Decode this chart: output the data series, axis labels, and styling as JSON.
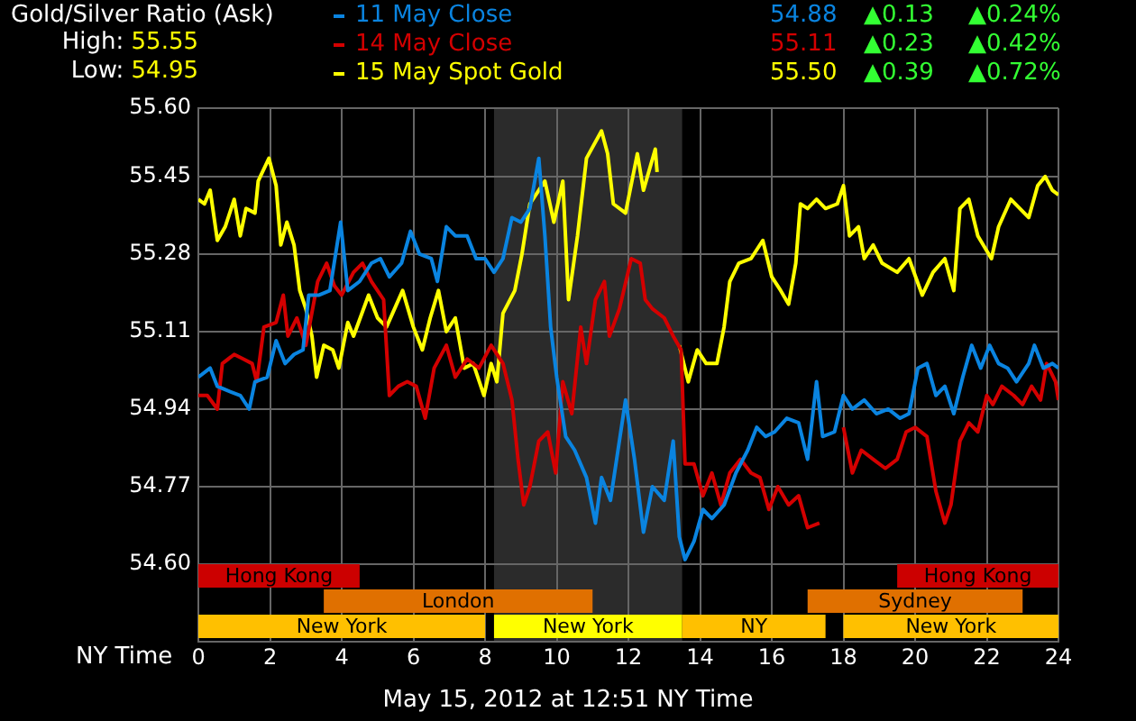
{
  "chart_data": {
    "type": "line",
    "title": "Gold/Silver Ratio (Ask)",
    "xlabel": "NY Time",
    "legend": "top",
    "grid": true,
    "xlim": [
      0,
      24
    ],
    "xticks": [
      0,
      2,
      4,
      6,
      8,
      10,
      12,
      14,
      16,
      18,
      20,
      22,
      24
    ],
    "ylim": [
      54.43,
      55.6
    ],
    "yticks": [
      {
        "value": 54.6,
        "label": "54.60"
      },
      54.77,
      54.94,
      55.11,
      55.28,
      55.45,
      {
        "value": 55.6,
        "label": "55.60"
      }
    ],
    "annotations": [
      "High: 55.55",
      "Low: 54.95",
      "54.88 ▲0.13 ▲0.24%",
      "55.11 ▲0.23 ▲0.42%",
      "55.50 ▲0.39 ▲0.72%",
      "May 15, 2012 at 12:51 NY Time"
    ],
    "bands": [
      {
        "axis": "x",
        "from": 8.25,
        "to": 13.5,
        "color": "#2b2b2b"
      },
      {
        "axis": "x",
        "from": 0,
        "to": 8,
        "label": "New York",
        "color": "#ffc000"
      },
      {
        "axis": "x",
        "from": 8.25,
        "to": 13.5,
        "label": "New York",
        "color": "#ffff00"
      },
      {
        "axis": "x",
        "from": 13.5,
        "to": 17.5,
        "label": "NY",
        "color": "#ffc000"
      },
      {
        "axis": "x",
        "from": 18,
        "to": 24,
        "label": "New York",
        "color": "#ffc000"
      },
      {
        "axis": "x",
        "from": 3.5,
        "to": 11,
        "label": "London",
        "color": "#e07000"
      },
      {
        "axis": "x",
        "from": 17,
        "to": 23,
        "label": "Sydney",
        "color": "#e07000"
      },
      {
        "axis": "x",
        "from": 0,
        "to": 4.5,
        "label": "Hong Kong",
        "color": "#cc0000"
      },
      {
        "axis": "x",
        "from": 19.5,
        "to": 24,
        "label": "Hong Kong",
        "color": "#cc0000"
      }
    ],
    "series": [
      {
        "name": "11 May Close",
        "color": "#0a84e0",
        "x": [
          0,
          0.33,
          0.53,
          0.83,
          1.17,
          1.42,
          1.58,
          1.92,
          2.17,
          2.42,
          2.67,
          2.92,
          3.08,
          3.37,
          3.67,
          3.97,
          4.17,
          4.5,
          4.83,
          5.08,
          5.33,
          5.67,
          5.92,
          6.17,
          6.5,
          6.67,
          6.92,
          7.17,
          7.5,
          7.75,
          8,
          8.25,
          8.5,
          8.75,
          9,
          9.25,
          9.5,
          9.67,
          9.83,
          10,
          10.25,
          10.5,
          10.83,
          11.08,
          11.25,
          11.5,
          11.92,
          12.17,
          12.42,
          12.67,
          13,
          13.25,
          13.42,
          13.58,
          13.83,
          14.08,
          14.33,
          14.67,
          15,
          15.33,
          15.58,
          15.83,
          16.08,
          16.42,
          16.75,
          17,
          17.25,
          17.42,
          17.75,
          18,
          18.25,
          18.58,
          18.92,
          19.25,
          19.58,
          19.83,
          20.08,
          20.33,
          20.58,
          20.83,
          21.08,
          21.33,
          21.58,
          21.83,
          22.08,
          22.33,
          22.58,
          22.83,
          23.17,
          23.33,
          23.58,
          23.83,
          24
        ],
        "values": [
          55.01,
          55.03,
          54.99,
          54.98,
          54.97,
          54.94,
          55.0,
          55.01,
          55.09,
          55.04,
          55.06,
          55.07,
          55.19,
          55.19,
          55.2,
          55.35,
          55.2,
          55.22,
          55.26,
          55.27,
          55.23,
          55.26,
          55.33,
          55.28,
          55.27,
          55.22,
          55.34,
          55.32,
          55.32,
          55.27,
          55.27,
          55.24,
          55.27,
          55.36,
          55.35,
          55.38,
          55.49,
          55.32,
          55.12,
          55.01,
          54.88,
          54.85,
          54.79,
          54.69,
          54.79,
          54.74,
          54.96,
          54.83,
          54.67,
          54.77,
          54.74,
          54.87,
          54.66,
          54.61,
          54.65,
          54.72,
          54.7,
          54.73,
          54.8,
          54.85,
          54.9,
          54.88,
          54.89,
          54.92,
          54.91,
          54.83,
          55.0,
          54.88,
          54.89,
          54.97,
          54.94,
          54.96,
          54.93,
          54.94,
          54.92,
          54.93,
          55.03,
          55.04,
          54.97,
          54.99,
          54.93,
          55.01,
          55.08,
          55.03,
          55.08,
          55.04,
          55.03,
          55.0,
          55.04,
          55.08,
          55.03,
          55.04,
          55.03
        ]
      },
      {
        "name": "14 May Close",
        "color": "#d40000",
        "x": [
          0,
          0.25,
          0.53,
          0.67,
          1,
          1.25,
          1.5,
          1.63,
          1.83,
          2.17,
          2.37,
          2.5,
          2.75,
          3,
          3.33,
          3.58,
          3.8,
          4,
          4.33,
          4.58,
          4.83,
          5.17,
          5.33,
          5.58,
          5.83,
          6.08,
          6.33,
          6.58,
          6.92,
          7.17,
          7.5,
          7.83,
          8.17,
          8.5,
          8.75,
          8.92,
          9.08,
          9.25,
          9.5,
          9.75,
          9.97,
          10.17,
          10.42,
          10.67,
          10.83,
          11.08,
          11.33,
          11.47,
          11.75,
          12.08,
          12.33,
          12.47,
          12.67,
          13,
          13.25,
          13.47,
          13.58,
          13.83,
          14.08,
          14.33,
          14.58,
          14.83,
          15.13,
          15.42,
          15.67,
          15.92,
          16.17,
          16.47,
          16.75,
          17,
          17.33,
          17.6,
          18,
          18.25,
          18.5,
          18.83,
          19.17,
          19.5,
          19.75,
          20,
          20.33,
          20.58,
          20.83,
          21,
          21.25,
          21.5,
          21.75,
          22,
          22.17,
          22.42,
          22.75,
          23,
          23.25,
          23.5,
          23.67,
          23.92,
          24
        ],
        "values": [
          54.97,
          54.97,
          54.94,
          55.04,
          55.06,
          55.05,
          55.04,
          55.0,
          55.12,
          55.13,
          55.19,
          55.1,
          55.14,
          55.08,
          55.22,
          55.26,
          55.21,
          55.19,
          55.24,
          55.26,
          55.22,
          55.18,
          54.97,
          54.99,
          55.0,
          54.99,
          54.92,
          55.03,
          55.08,
          55.01,
          55.05,
          55.03,
          55.08,
          55.04,
          54.96,
          54.83,
          54.73,
          54.77,
          54.87,
          54.89,
          54.8,
          55.0,
          54.93,
          55.12,
          55.04,
          55.18,
          55.22,
          55.1,
          55.16,
          55.27,
          55.26,
          55.18,
          55.16,
          55.14,
          55.1,
          55.07,
          54.82,
          54.82,
          54.75,
          54.8,
          54.73,
          54.8,
          54.83,
          54.8,
          54.79,
          54.72,
          54.77,
          54.73,
          54.75,
          54.68,
          54.69,
          null,
          54.9,
          54.8,
          54.85,
          54.83,
          54.81,
          54.83,
          54.89,
          54.9,
          54.88,
          54.76,
          54.69,
          54.73,
          54.87,
          54.91,
          54.89,
          54.97,
          54.95,
          54.99,
          54.97,
          54.95,
          54.99,
          54.96,
          55.04,
          55.0,
          54.96
        ]
      },
      {
        "name": "15 May Spot Gold",
        "color": "#ffff00",
        "x": [
          0,
          0.17,
          0.33,
          0.53,
          0.75,
          1,
          1.17,
          1.33,
          1.58,
          1.67,
          1.97,
          2.17,
          2.3,
          2.47,
          2.67,
          2.83,
          3,
          3.17,
          3.3,
          3.5,
          3.75,
          3.92,
          4.17,
          4.33,
          4.75,
          5,
          5.25,
          5.7,
          6,
          6.25,
          6.47,
          6.7,
          6.92,
          7.17,
          7.42,
          7.67,
          7.97,
          8.17,
          8.33,
          8.5,
          8.83,
          9.03,
          9.25,
          9.5,
          9.67,
          9.92,
          10.17,
          10.33,
          10.58,
          10.83,
          11.25,
          11.42,
          11.58,
          11.92,
          12.25,
          12.42,
          12.75,
          12.8,
          13.1,
          13.42,
          13.67,
          13.92,
          14.17,
          14.47,
          14.67,
          14.83,
          15.08,
          15.42,
          15.75,
          16,
          16.25,
          16.47,
          16.67,
          16.8,
          17,
          17.25,
          17.5,
          17.83,
          18,
          18.17,
          18.42,
          18.58,
          18.83,
          19.08,
          19.5,
          19.83,
          20.2,
          20.5,
          20.83,
          21.08,
          21.25,
          21.5,
          21.75,
          22.13,
          22.33,
          22.67,
          23.17,
          23.42,
          23.63,
          23.83,
          24
        ],
        "values": [
          55.4,
          55.39,
          55.42,
          55.31,
          55.34,
          55.4,
          55.32,
          55.38,
          55.37,
          55.44,
          55.49,
          55.43,
          55.3,
          55.35,
          55.3,
          55.2,
          55.16,
          55.1,
          55.01,
          55.08,
          55.07,
          55.03,
          55.13,
          55.1,
          55.19,
          55.14,
          55.12,
          55.2,
          55.12,
          55.07,
          55.14,
          55.2,
          55.11,
          55.14,
          55.03,
          55.04,
          54.97,
          55.04,
          55.0,
          55.15,
          55.2,
          55.28,
          55.39,
          55.42,
          55.44,
          55.35,
          55.44,
          55.18,
          55.32,
          55.49,
          55.55,
          55.5,
          55.39,
          55.37,
          55.5,
          55.42,
          55.51,
          55.46,
          null,
          55.08,
          55.0,
          55.07,
          55.04,
          55.04,
          55.12,
          55.22,
          55.26,
          55.27,
          55.31,
          55.23,
          55.2,
          55.17,
          55.26,
          55.39,
          55.38,
          55.4,
          55.38,
          55.39,
          55.43,
          55.32,
          55.34,
          55.27,
          55.3,
          55.26,
          55.24,
          55.27,
          55.19,
          55.24,
          55.27,
          55.2,
          55.38,
          55.4,
          55.32,
          55.27,
          55.34,
          55.4,
          55.36,
          55.43,
          55.45,
          55.42,
          55.41
        ]
      }
    ]
  }
}
